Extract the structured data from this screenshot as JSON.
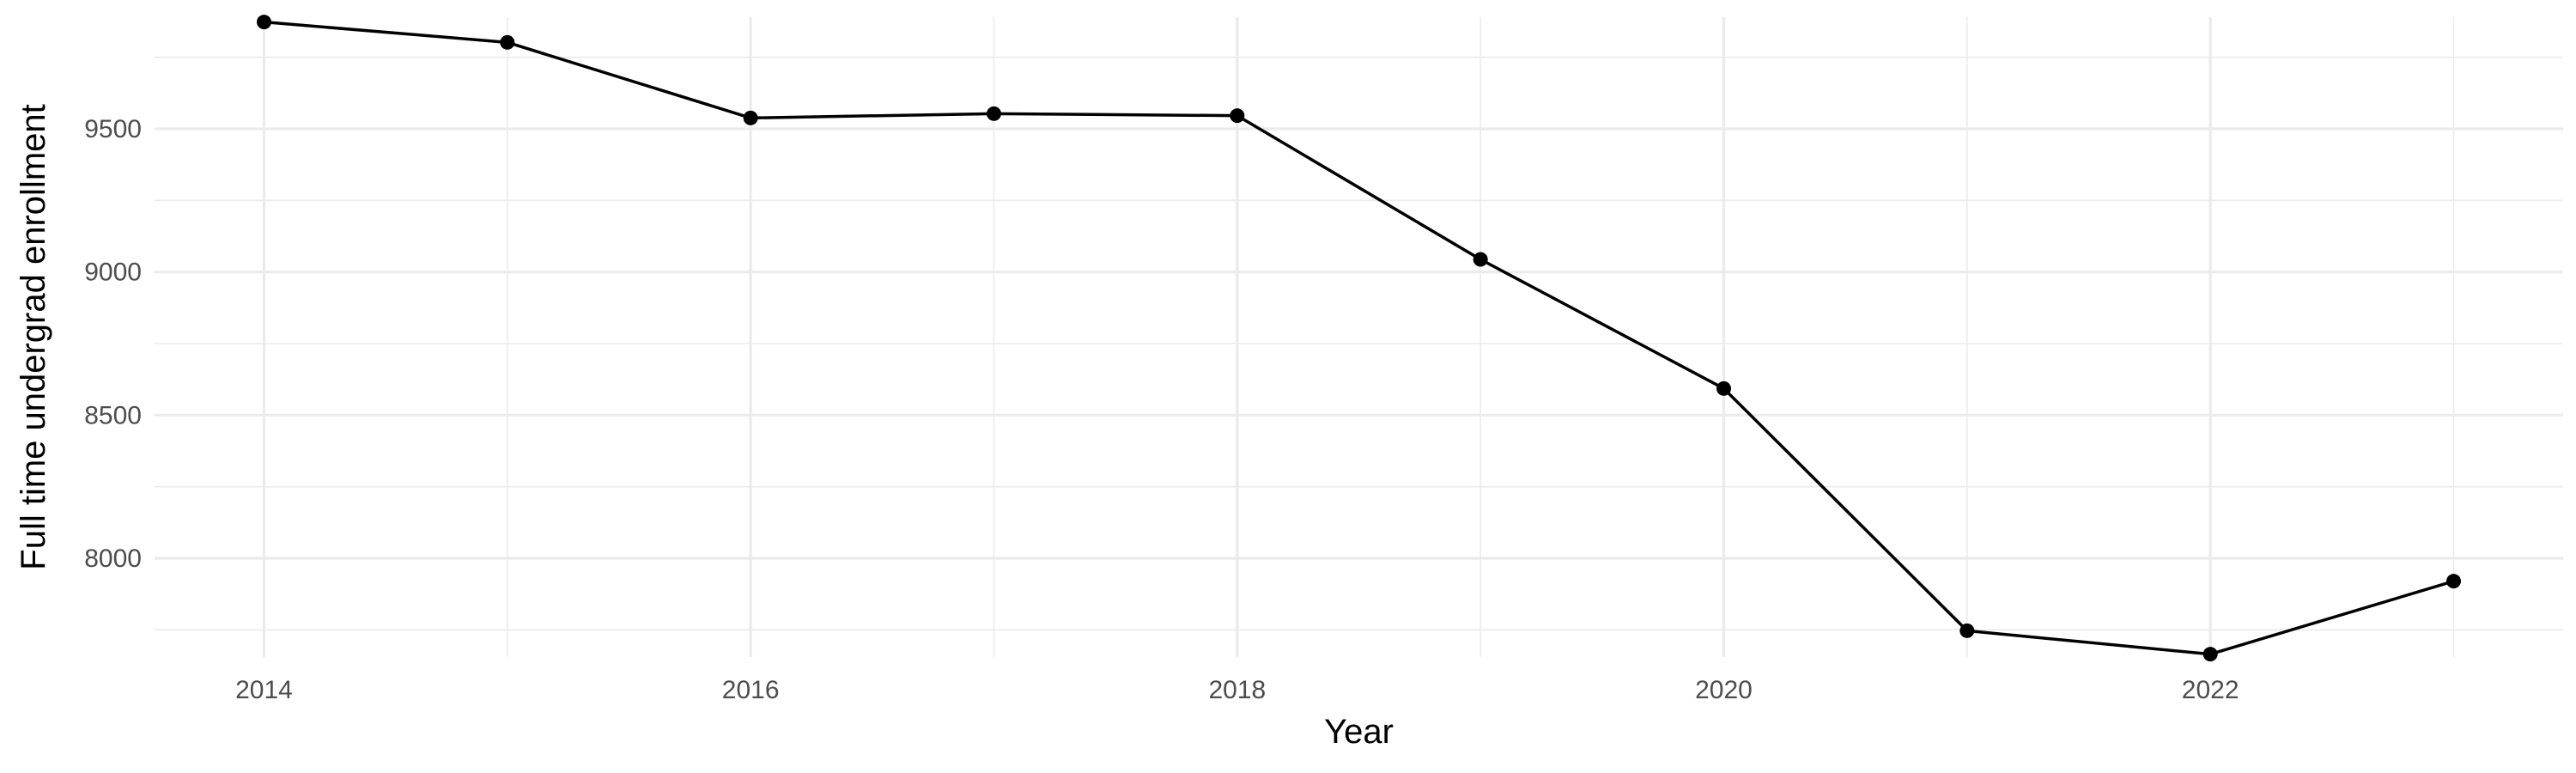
{
  "chart_data": {
    "type": "line",
    "title": "",
    "xlabel": "Year",
    "ylabel": "Full time undergrad enrollment",
    "x": [
      2014,
      2015,
      2016,
      2017,
      2018,
      2019,
      2020,
      2021,
      2022,
      2023
    ],
    "series": [
      {
        "values": [
          9873,
          9802,
          9538,
          9553,
          9546,
          9044,
          8593,
          7747,
          7665,
          7920
        ]
      }
    ],
    "xlim": [
      2013.55,
      2023.45
    ],
    "ylim": [
      7655,
      9890
    ],
    "x_ticks": [
      2014,
      2016,
      2018,
      2020,
      2022
    ],
    "y_ticks": [
      8000,
      8500,
      9000,
      9500
    ],
    "grid": true,
    "legend": "none",
    "colors": {
      "line": "#000000",
      "point": "#000000",
      "grid": "#ebebeb",
      "tick_text": "#4d4d4d",
      "background": "#ffffff"
    }
  }
}
